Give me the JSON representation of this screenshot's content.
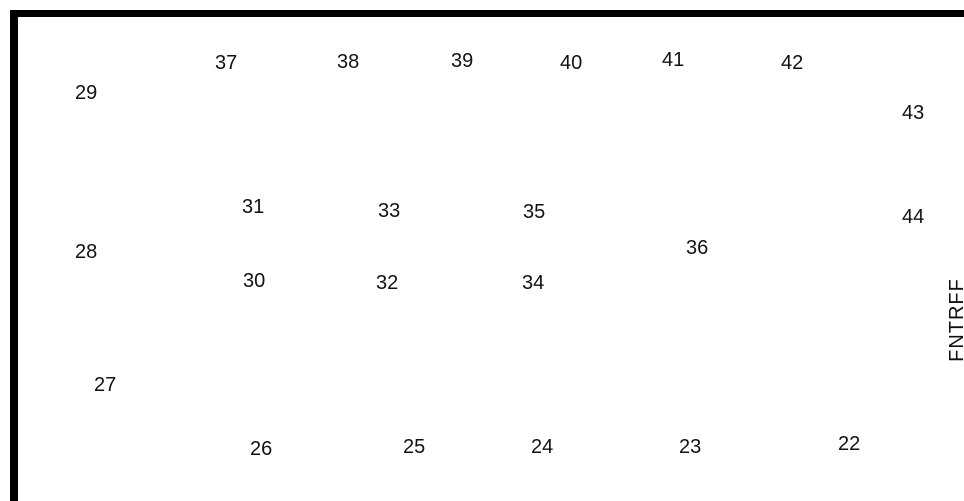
{
  "labels": {
    "n22": "22",
    "n23": "23",
    "n24": "24",
    "n25": "25",
    "n26": "26",
    "n27": "27",
    "n28": "28",
    "n29": "29",
    "n30": "30",
    "n31": "31",
    "n32": "32",
    "n33": "33",
    "n34": "34",
    "n35": "35",
    "n36": "36",
    "n37": "37",
    "n38": "38",
    "n39": "39",
    "n40": "40",
    "n41": "41",
    "n42": "42",
    "n43": "43",
    "n44": "44"
  },
  "side_label": "FNTRFF",
  "colors": {
    "border": "#000000",
    "text": "#111111",
    "background": "#ffffff"
  }
}
